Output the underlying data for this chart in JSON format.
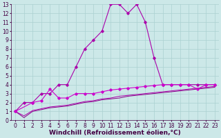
{
  "xlabel": "Windchill (Refroidissement éolien,°C)",
  "background_color": "#cce8e8",
  "xlim": [
    -0.5,
    23.5
  ],
  "ylim": [
    0,
    13
  ],
  "xticks": [
    0,
    1,
    2,
    3,
    4,
    5,
    6,
    7,
    8,
    9,
    10,
    11,
    12,
    13,
    14,
    15,
    16,
    17,
    18,
    19,
    20,
    21,
    22,
    23
  ],
  "yticks": [
    0,
    1,
    2,
    3,
    4,
    5,
    6,
    7,
    8,
    9,
    10,
    11,
    12,
    13
  ],
  "line1_x": [
    0,
    1,
    2,
    3,
    4,
    5,
    6,
    7,
    8,
    9,
    10,
    11,
    12,
    13,
    14,
    15,
    16,
    17,
    18,
    19,
    20,
    21,
    22,
    23
  ],
  "line1_y": [
    1,
    2,
    2,
    3,
    3,
    4,
    4,
    6,
    8,
    9,
    10,
    13,
    13,
    12,
    13,
    11,
    7,
    4,
    4,
    4,
    4,
    4,
    4,
    4
  ],
  "line2_x": [
    0,
    2,
    3,
    4,
    5,
    6,
    7,
    8,
    9,
    10,
    11,
    12,
    13,
    14,
    15,
    16,
    17,
    18,
    19,
    20,
    21,
    22,
    23
  ],
  "line2_y": [
    1,
    2,
    2.2,
    3.5,
    2.5,
    2.5,
    3,
    3,
    3,
    3.2,
    3.4,
    3.5,
    3.6,
    3.7,
    3.8,
    3.9,
    4,
    4,
    4,
    4,
    3.5,
    4,
    4
  ],
  "line3_x": [
    0,
    1,
    2,
    3,
    4,
    5,
    6,
    7,
    8,
    9,
    10,
    11,
    12,
    13,
    14,
    15,
    16,
    17,
    18,
    19,
    20,
    21,
    22,
    23
  ],
  "line3_y": [
    1,
    0.3,
    1.0,
    1.2,
    1.4,
    1.5,
    1.6,
    1.8,
    2.0,
    2.1,
    2.3,
    2.4,
    2.5,
    2.7,
    2.8,
    2.9,
    3.0,
    3.1,
    3.2,
    3.3,
    3.4,
    3.5,
    3.6,
    3.7
  ],
  "line4_x": [
    0,
    1,
    2,
    3,
    4,
    5,
    6,
    7,
    8,
    9,
    10,
    11,
    12,
    13,
    14,
    15,
    16,
    17,
    18,
    19,
    20,
    21,
    22,
    23
  ],
  "line4_y": [
    1,
    0.5,
    1.1,
    1.3,
    1.5,
    1.6,
    1.7,
    1.9,
    2.1,
    2.2,
    2.4,
    2.5,
    2.7,
    2.8,
    2.9,
    3.0,
    3.1,
    3.2,
    3.3,
    3.4,
    3.5,
    3.6,
    3.7,
    3.8
  ],
  "line_color1": "#aa00aa",
  "line_color2": "#cc00cc",
  "line_color3": "#880088",
  "line_color4": "#aa00aa",
  "grid_color": "#aad0d0",
  "tick_color": "#440044",
  "tick_fontsize": 5.5,
  "xlabel_fontsize": 6.5
}
